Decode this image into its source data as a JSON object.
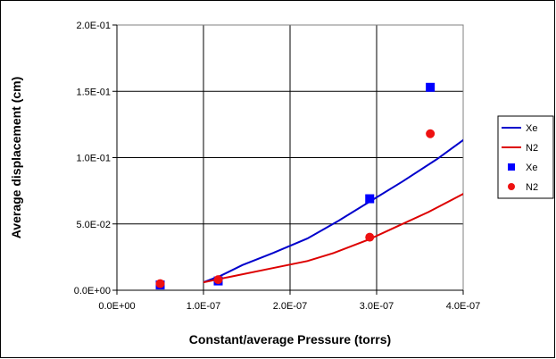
{
  "chart_data": {
    "type": "scatter",
    "title": "",
    "xlabel": "Constant/average Pressure (torrs)",
    "ylabel": "Average displacement (cm)",
    "xlim": [
      0,
      4e-07
    ],
    "ylim": [
      0,
      0.2
    ],
    "x_ticks": [
      0,
      1e-07,
      2e-07,
      3e-07,
      4e-07
    ],
    "x_tick_labels": [
      "0.0E+00",
      "1.0E-07",
      "2.0E-07",
      "3.0E-07",
      "4.0E-07"
    ],
    "y_ticks": [
      0,
      0.05,
      0.1,
      0.15,
      0.2
    ],
    "y_tick_labels": [
      "0.0E+00",
      "5.0E-02",
      "1.0E-01",
      "1.5E-01",
      "2.0E-01"
    ],
    "grid": true,
    "legend_position": "right",
    "series": [
      {
        "name": "Xe",
        "kind": "line",
        "color": "#0000cc",
        "x": [
          1e-07,
          1.2e-07,
          1.45e-07,
          1.8e-07,
          2.2e-07,
          2.55e-07,
          2.95e-07,
          3.3e-07,
          3.7e-07,
          4.1e-07
        ],
        "y": [
          0.006,
          0.011,
          0.019,
          0.028,
          0.039,
          0.052,
          0.068,
          0.082,
          0.099,
          0.118
        ]
      },
      {
        "name": "N2",
        "kind": "line",
        "color": "#dd0000",
        "x": [
          1e-07,
          1.3e-07,
          1.75e-07,
          2.2e-07,
          2.5e-07,
          2.9e-07,
          3.2e-07,
          3.6e-07,
          4.1e-07
        ],
        "y": [
          0.006,
          0.01,
          0.016,
          0.022,
          0.028,
          0.038,
          0.047,
          0.059,
          0.076
        ]
      },
      {
        "name": "Xe",
        "kind": "marker",
        "marker": "square",
        "color": "#0000ff",
        "x": [
          5e-08,
          1.17e-07,
          2.92e-07,
          3.62e-07
        ],
        "y": [
          0.004,
          0.007,
          0.069,
          0.153
        ]
      },
      {
        "name": "N2",
        "kind": "marker",
        "marker": "circle",
        "color": "#ee1111",
        "x": [
          5e-08,
          1.17e-07,
          2.92e-07,
          3.62e-07
        ],
        "y": [
          0.005,
          0.008,
          0.04,
          0.118
        ]
      }
    ]
  }
}
